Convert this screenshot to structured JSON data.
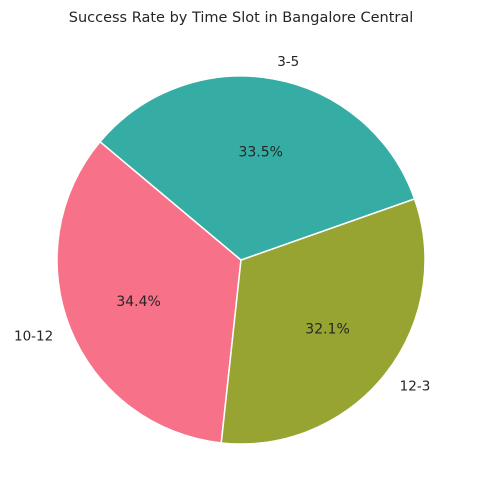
{
  "chart_data": {
    "type": "pie",
    "title": "Success Rate by Time Slot in Bangalore Central",
    "slices": [
      {
        "label": "10-12",
        "value": 34.4,
        "pct_label": "34.4%",
        "color": "#f77189"
      },
      {
        "label": "12-3",
        "value": 32.1,
        "pct_label": "32.1%",
        "color": "#97a431"
      },
      {
        "label": "3-5",
        "value": 33.5,
        "pct_label": "33.5%",
        "color": "#36ada4"
      }
    ],
    "start_angle_deg": 140,
    "direction": "counterclockwise",
    "edge_color": "#ffffff",
    "legend": "none"
  }
}
